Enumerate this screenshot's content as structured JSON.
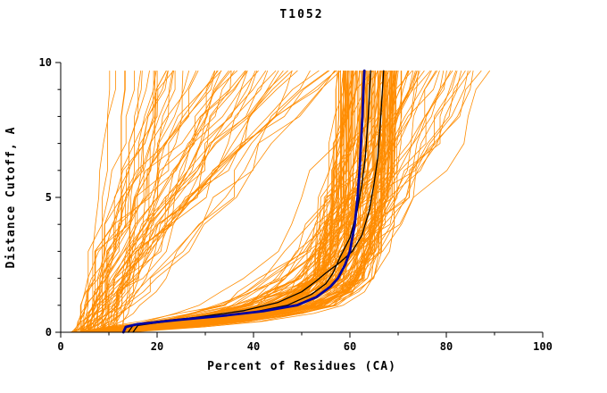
{
  "chart_data": {
    "type": "line",
    "title": "T1052",
    "xlabel": "Percent of Residues (CA)",
    "ylabel": "Distance Cutoff, A",
    "xlim": [
      0,
      100
    ],
    "ylim": [
      0,
      10
    ],
    "grid": false,
    "legend": "none",
    "x_major_ticks": [
      0,
      20,
      40,
      60,
      80,
      100
    ],
    "x_minor_ticks": [
      10,
      30,
      50,
      70,
      90
    ],
    "y_major_ticks": [
      0,
      5,
      10
    ],
    "y_minor_ticks": [
      1,
      2,
      3,
      4,
      6,
      7,
      8,
      9
    ],
    "colors": {
      "ensemble": "#FF8C00",
      "highlight": "#0000A0",
      "reference": "#000000",
      "axis": "#000000"
    },
    "y_data_max": 9.7,
    "ensemble": {
      "description": "background prediction curves (percent of CA residues within distance cutoff)",
      "count": 200,
      "seed": 7,
      "control_y": [
        0,
        0.2,
        0.4,
        0.7,
        1,
        1.5,
        2,
        3,
        4,
        5,
        6,
        7,
        8,
        9,
        9.7
      ],
      "groups": [
        {
          "name": "main-cluster",
          "weight": 0.55,
          "x_start": [
            2,
            14
          ],
          "x_final": [
            57,
            70
          ],
          "profile": [
            0,
            0.22,
            0.42,
            0.62,
            0.75,
            0.84,
            0.89,
            0.93,
            0.95,
            0.962,
            0.972,
            0.98,
            0.987,
            0.994,
            1
          ],
          "noise": 2.5
        },
        {
          "name": "left-fan",
          "weight": 0.28,
          "x_start": [
            2,
            12
          ],
          "x_final": [
            9,
            58
          ],
          "p_range": [
            0.5,
            1.6
          ],
          "noise": 3
        },
        {
          "name": "late-risers",
          "weight": 0.17,
          "x_start": [
            3,
            15
          ],
          "x_final": [
            64,
            90
          ],
          "profile": [
            0,
            0.1,
            0.2,
            0.33,
            0.43,
            0.52,
            0.59,
            0.68,
            0.75,
            0.8,
            0.85,
            0.9,
            0.94,
            0.97,
            1
          ],
          "noise": 3
        }
      ]
    },
    "series": [
      {
        "name": "black-model-1",
        "color": "#000000",
        "width": 1.3,
        "points": [
          [
            15,
            0
          ],
          [
            16,
            0.25
          ],
          [
            22,
            0.4
          ],
          [
            30,
            0.55
          ],
          [
            40,
            0.75
          ],
          [
            47,
            1
          ],
          [
            52,
            1.4
          ],
          [
            55,
            1.8
          ],
          [
            56.5,
            2.2
          ],
          [
            58,
            2.8
          ],
          [
            60,
            3.5
          ],
          [
            61.5,
            4.5
          ],
          [
            62.5,
            5.5
          ],
          [
            63.2,
            6.5
          ],
          [
            63.8,
            8
          ],
          [
            64.3,
            9.7
          ]
        ]
      },
      {
        "name": "black-model-2",
        "color": "#000000",
        "width": 1.3,
        "points": [
          [
            14,
            0
          ],
          [
            15,
            0.25
          ],
          [
            20,
            0.4
          ],
          [
            28,
            0.55
          ],
          [
            38,
            0.8
          ],
          [
            45,
            1.1
          ],
          [
            50,
            1.5
          ],
          [
            53,
            1.9
          ],
          [
            55,
            2.2
          ],
          [
            58,
            2.6
          ],
          [
            60.5,
            3
          ],
          [
            62.5,
            3.6
          ],
          [
            64,
            4.5
          ],
          [
            65,
            5.5
          ],
          [
            65.8,
            6.5
          ],
          [
            66.4,
            8
          ],
          [
            67,
            9.7
          ]
        ]
      },
      {
        "name": "blue-model",
        "color": "#0000A0",
        "width": 2.8,
        "points": [
          [
            13,
            0
          ],
          [
            13.5,
            0.2
          ],
          [
            16,
            0.3
          ],
          [
            24,
            0.45
          ],
          [
            33,
            0.6
          ],
          [
            42,
            0.78
          ],
          [
            49,
            1
          ],
          [
            53,
            1.3
          ],
          [
            56,
            1.7
          ],
          [
            57.5,
            2
          ],
          [
            59,
            2.5
          ],
          [
            60,
            3
          ],
          [
            61,
            4
          ],
          [
            61.6,
            5
          ],
          [
            62,
            6
          ],
          [
            62.3,
            7
          ],
          [
            62.6,
            8
          ],
          [
            62.8,
            9
          ],
          [
            63,
            9.7
          ]
        ]
      }
    ]
  }
}
